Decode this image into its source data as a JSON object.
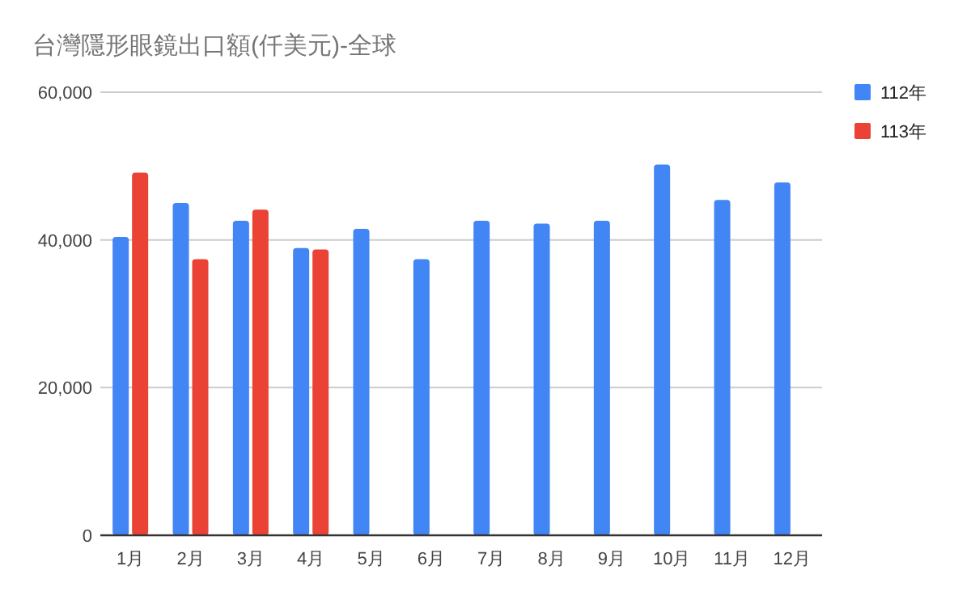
{
  "chart_data": {
    "type": "bar",
    "title": "台灣隱形眼鏡出口額(仟美元)-全球",
    "categories": [
      "1月",
      "2月",
      "3月",
      "4月",
      "5月",
      "6月",
      "7月",
      "8月",
      "9月",
      "10月",
      "11月",
      "12月"
    ],
    "series": [
      {
        "name": "112年",
        "color": "#4285f4",
        "values": [
          40400,
          45000,
          42600,
          38900,
          41500,
          37400,
          42600,
          42200,
          42600,
          50200,
          45400,
          47800
        ]
      },
      {
        "name": "113年",
        "color": "#ea4335",
        "values": [
          49100,
          37400,
          44100,
          38700,
          null,
          null,
          null,
          null,
          null,
          null,
          null,
          null
        ]
      }
    ],
    "ylim": [
      0,
      60000
    ],
    "yticks": [
      {
        "value": 0,
        "label": "0"
      },
      {
        "value": 20000,
        "label": "20,000"
      },
      {
        "value": 40000,
        "label": "40,000"
      },
      {
        "value": 60000,
        "label": "60,000"
      }
    ],
    "grid": "y",
    "legend": "right"
  }
}
